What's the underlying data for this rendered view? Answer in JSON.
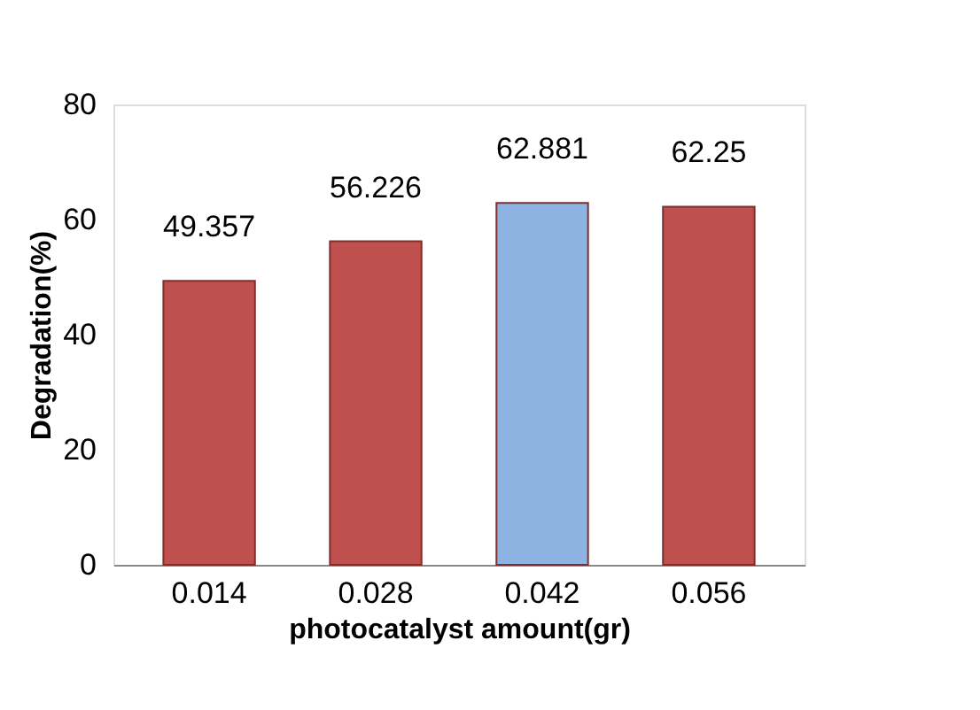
{
  "chart_data": {
    "type": "bar",
    "xlabel": "photocatalyst amount(gr)",
    "ylabel": "Degradation(%)",
    "categories": [
      "0.014",
      "0.028",
      "0.042",
      "0.056"
    ],
    "values": [
      49.357,
      56.226,
      62.881,
      62.25
    ],
    "colors": [
      "#c0504d",
      "#c0504d",
      "#8db3e2",
      "#c0504d"
    ],
    "ylim": [
      0,
      80
    ],
    "yticks": [
      0,
      20,
      40,
      60,
      80
    ],
    "grid": false,
    "data_labels": true
  }
}
